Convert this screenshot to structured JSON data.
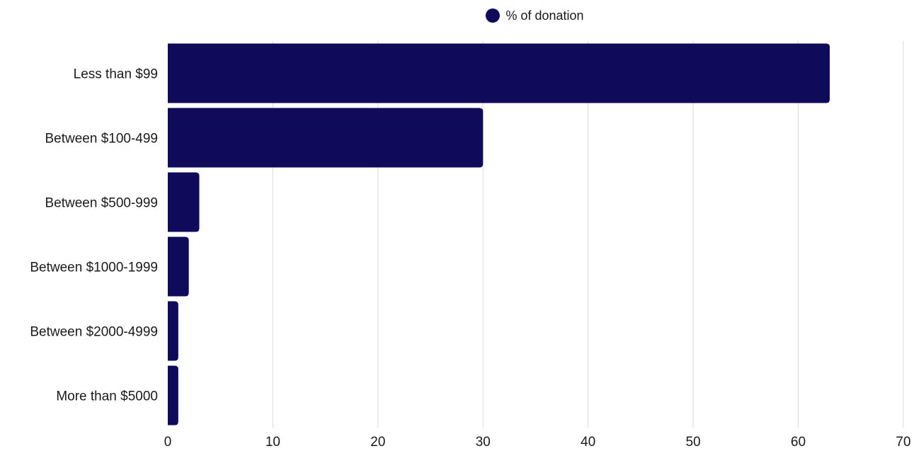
{
  "chart_data": {
    "type": "bar",
    "orientation": "horizontal",
    "categories": [
      "Less than $99",
      "Between $100-499",
      "Between $500-999",
      "Between $1000-1999",
      "Between $2000-4999",
      "More than $5000"
    ],
    "series": [
      {
        "name": "% of donation",
        "values": [
          63,
          30,
          3,
          2,
          1,
          1
        ]
      }
    ],
    "xlim": [
      0,
      70
    ],
    "xticks": [
      "0",
      "10",
      "20",
      "30",
      "40",
      "50",
      "60",
      "70"
    ],
    "grid": "vertical",
    "legend_position": "top-center",
    "bar_color": "#0f0a5a",
    "grid_color": "#d9d9d9"
  }
}
